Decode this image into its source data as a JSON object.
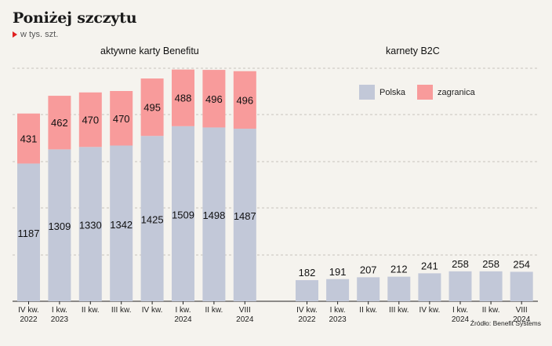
{
  "title": "Poniżej szczytu",
  "subtitle": "w tys. szt.",
  "source": "Źródło: Benefit Systems",
  "colors": {
    "polska": "#c2c8d8",
    "zagranica": "#f89b9b",
    "background": "#f5f3ee"
  },
  "legend": {
    "polska": "Polska",
    "zagranica": "zagranica"
  },
  "chart_data": [
    {
      "type": "bar",
      "title": "aktywne karty Benefitu",
      "categories": [
        [
          "IV kw.",
          "2022"
        ],
        [
          "I kw.",
          "2023"
        ],
        [
          "II kw.",
          ""
        ],
        [
          "III kw.",
          ""
        ],
        [
          "IV kw.",
          ""
        ],
        [
          "I kw.",
          "2024"
        ],
        [
          "II kw.",
          ""
        ],
        [
          "VIII",
          "2024"
        ]
      ],
      "series": [
        {
          "name": "Polska",
          "values": [
            1187,
            1309,
            1330,
            1342,
            1425,
            1509,
            1498,
            1487
          ]
        },
        {
          "name": "zagranica",
          "values": [
            431,
            462,
            470,
            470,
            495,
            488,
            496,
            496
          ]
        }
      ],
      "stacked": true,
      "grid": true
    },
    {
      "type": "bar",
      "title": "karnety B2C",
      "categories": [
        [
          "IV kw.",
          "2022"
        ],
        [
          "I kw.",
          "2023"
        ],
        [
          "II kw.",
          ""
        ],
        [
          "III kw.",
          ""
        ],
        [
          "IV kw.",
          ""
        ],
        [
          "I kw.",
          "2024"
        ],
        [
          "II kw.",
          ""
        ],
        [
          "VIII",
          "2024"
        ]
      ],
      "series": [
        {
          "name": "Polska",
          "values": [
            182,
            191,
            207,
            212,
            241,
            258,
            258,
            254
          ]
        }
      ],
      "grid": true
    }
  ]
}
